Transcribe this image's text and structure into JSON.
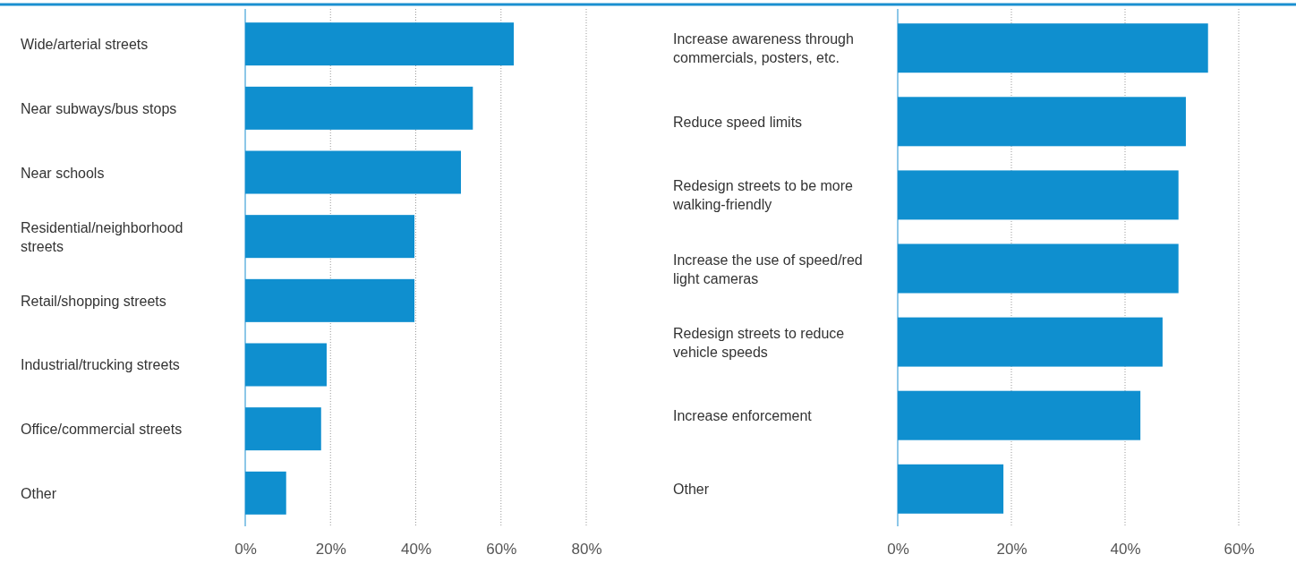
{
  "chart_data": [
    {
      "type": "bar",
      "orientation": "horizontal",
      "categories": [
        "Wide/arterial streets",
        "Near subways/bus stops",
        "Near schools",
        "Residential/neighborhood streets",
        "Retail/shopping streets",
        "Industrial/trucking streets",
        "Office/commercial streets",
        "Other"
      ],
      "values": [
        63.0,
        53.4,
        50.6,
        39.7,
        39.7,
        19.1,
        17.8,
        9.6
      ],
      "color": "#0f8fcf",
      "xlim": [
        0,
        80
      ],
      "xticks": [
        {
          "value": 0,
          "label": "0%"
        },
        {
          "value": 20,
          "label": "20%"
        },
        {
          "value": 40,
          "label": "40%"
        },
        {
          "value": 60,
          "label": "60%"
        },
        {
          "value": 80,
          "label": "80%"
        }
      ],
      "grid": "x"
    },
    {
      "type": "bar",
      "orientation": "horizontal",
      "categories": [
        "Increase awareness through commercials, posters, etc.",
        "Reduce speed limits",
        "Redesign streets to be more walking-friendly",
        "Increase the use of speed/red light cameras",
        "Redesign streets to reduce vehicle speeds",
        "Increase enforcement",
        "Other"
      ],
      "values": [
        54.6,
        50.7,
        49.4,
        49.4,
        46.6,
        42.7,
        18.6
      ],
      "color": "#0f8fcf",
      "xlim": [
        0,
        60
      ],
      "xticks": [
        {
          "value": 0,
          "label": "0%"
        },
        {
          "value": 20,
          "label": "20%"
        },
        {
          "value": 40,
          "label": "40%"
        },
        {
          "value": 60,
          "label": "60%"
        }
      ],
      "grid": "x"
    }
  ]
}
